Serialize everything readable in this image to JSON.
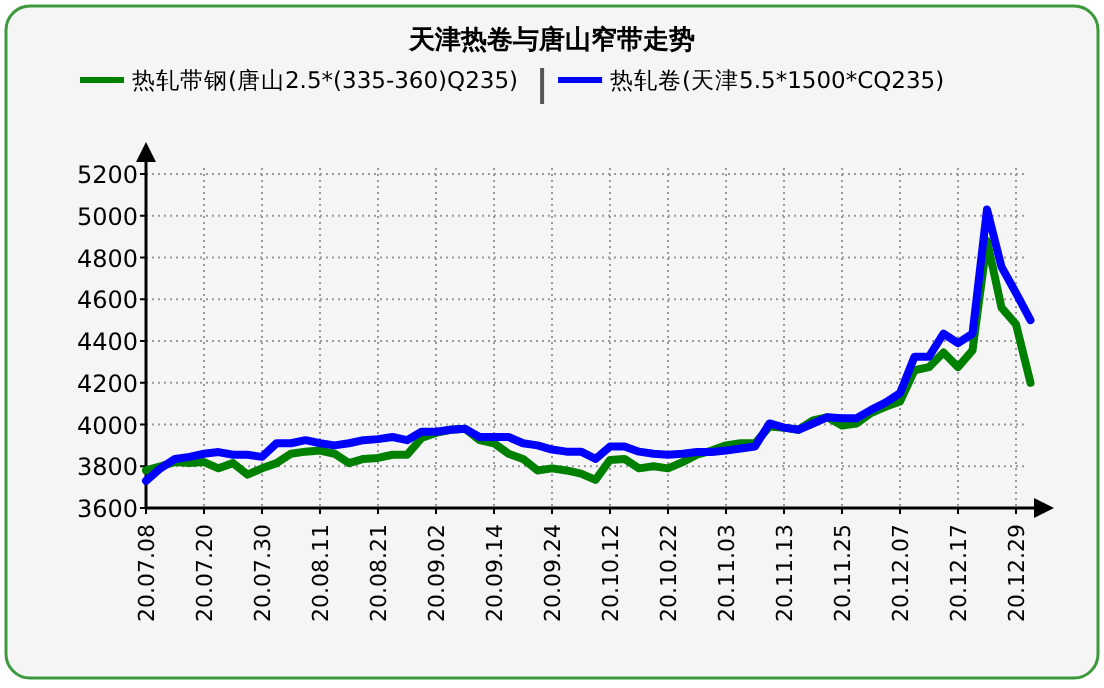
{
  "chart_data": {
    "type": "line",
    "title": "天津热卷与唐山窄带走势",
    "categories": [
      "20.07.08",
      null,
      null,
      null,
      "20.07.20",
      null,
      null,
      null,
      "20.07.30",
      null,
      null,
      null,
      "20.08.11",
      null,
      null,
      null,
      "20.08.21",
      null,
      null,
      null,
      "20.09.02",
      null,
      null,
      null,
      "20.09.14",
      null,
      null,
      null,
      "20.09.24",
      null,
      null,
      null,
      "20.10.12",
      null,
      null,
      null,
      "20.10.22",
      null,
      null,
      null,
      "20.11.03",
      null,
      null,
      null,
      "20.11.13",
      null,
      null,
      null,
      "20.11.25",
      null,
      null,
      null,
      "20.12.07",
      null,
      null,
      null,
      "20.12.17",
      null,
      null,
      null,
      "20.12.29",
      null
    ],
    "series": [
      {
        "name": "热轧带钢(唐山2.5*(335-360)Q235)",
        "color": "#008000",
        "values": [
          3780,
          3800,
          3820,
          3815,
          3820,
          3790,
          3815,
          3760,
          3790,
          3815,
          3860,
          3870,
          3875,
          3860,
          3815,
          3835,
          3840,
          3855,
          3855,
          3935,
          3960,
          3975,
          3980,
          3925,
          3910,
          3860,
          3835,
          3780,
          3790,
          3780,
          3765,
          3735,
          3830,
          3835,
          3790,
          3800,
          3790,
          3820,
          3855,
          3875,
          3900,
          3910,
          3910,
          3990,
          3985,
          3975,
          4020,
          4035,
          3995,
          4005,
          4055,
          4085,
          4110,
          4260,
          4275,
          4345,
          4275,
          4355,
          4880,
          4560,
          4480,
          4200
        ]
      },
      {
        "name": "热轧卷(天津5.5*1500*CQ235)",
        "color": "#0000ff",
        "values": [
          3730,
          3790,
          3835,
          3845,
          3860,
          3868,
          3855,
          3855,
          3845,
          3910,
          3910,
          3925,
          3910,
          3900,
          3910,
          3925,
          3930,
          3940,
          3925,
          3965,
          3965,
          3975,
          3980,
          3940,
          3940,
          3940,
          3910,
          3900,
          3880,
          3870,
          3870,
          3835,
          3895,
          3895,
          3870,
          3860,
          3855,
          3860,
          3868,
          3868,
          3875,
          3885,
          3895,
          4005,
          3985,
          3975,
          4005,
          4035,
          4030,
          4030,
          4070,
          4105,
          4150,
          4325,
          4325,
          4435,
          4390,
          4435,
          5030,
          4755,
          4630,
          4500
        ]
      }
    ],
    "ylim": [
      3600,
      5200
    ],
    "yticks": [
      3600,
      3800,
      4000,
      4200,
      4400,
      4600,
      4800,
      5000,
      5200
    ],
    "grid": true,
    "legend": "top"
  }
}
